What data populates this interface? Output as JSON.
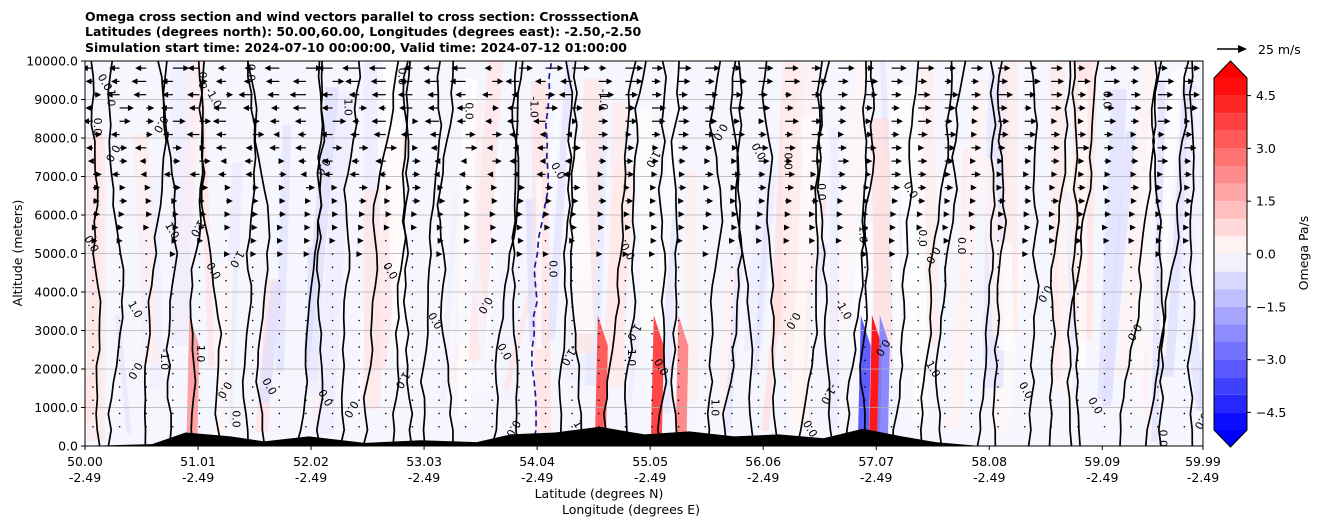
{
  "chart_data": {
    "type": "contour",
    "title_lines": [
      "Omega cross section and wind vectors parallel to cross section: CrosssectionA",
      "Latitudes (degrees north): 50.00,60.00, Longitudes (degrees east): -2.50,-2.50",
      "Simulation start time: 2024-07-10 00:00:00, Valid time: 2024-07-12 01:00:00"
    ],
    "xlabel_lines": [
      "Latitude (degrees N)",
      "Longitude (degrees E)"
    ],
    "ylabel": "Altitude (meters)",
    "xlim": [
      50.0,
      59.99
    ],
    "ylim": [
      0,
      10000
    ],
    "x_ticks": [
      {
        "lat": "50.00",
        "lon": "-2.49",
        "value": 50.0
      },
      {
        "lat": "51.01",
        "lon": "-2.49",
        "value": 51.01
      },
      {
        "lat": "52.02",
        "lon": "-2.49",
        "value": 52.02
      },
      {
        "lat": "53.03",
        "lon": "-2.49",
        "value": 53.03
      },
      {
        "lat": "54.04",
        "lon": "-2.49",
        "value": 54.04
      },
      {
        "lat": "55.05",
        "lon": "-2.49",
        "value": 55.05
      },
      {
        "lat": "56.06",
        "lon": "-2.49",
        "value": 56.06
      },
      {
        "lat": "57.07",
        "lon": "-2.49",
        "value": 57.07
      },
      {
        "lat": "58.08",
        "lon": "-2.49",
        "value": 58.08
      },
      {
        "lat": "59.09",
        "lon": "-2.49",
        "value": 59.09
      },
      {
        "lat": "59.99",
        "lon": "-2.49",
        "value": 59.99
      }
    ],
    "y_ticks": [
      "0.0",
      "1000.0",
      "2000.0",
      "3000.0",
      "4000.0",
      "5000.0",
      "6000.0",
      "7000.0",
      "8000.0",
      "9000.0",
      "10000.0"
    ],
    "y_tick_values": [
      0,
      1000,
      2000,
      3000,
      4000,
      5000,
      6000,
      7000,
      8000,
      9000,
      10000
    ],
    "colorbar": {
      "label": "Omega Pa/s",
      "range": [
        -5.0,
        5.0
      ],
      "ticks": [
        "4.5",
        "3.0",
        "1.5",
        "0.0",
        "−1.5",
        "−3.0",
        "−4.5"
      ],
      "tick_values": [
        4.5,
        3.0,
        1.5,
        0.0,
        -1.5,
        -3.0,
        -4.5
      ],
      "extend": "both",
      "cmap": "bwr"
    },
    "quiver_key": {
      "label": "25 m/s",
      "speed": 25
    },
    "contour_levels": [
      -1.0,
      0.0,
      1.0
    ],
    "contour_labels": [
      {
        "text": "0.0",
        "x": 50.03,
        "y": 5200
      },
      {
        "text": "0.0",
        "x": 50.08,
        "y": 8300
      },
      {
        "text": "0.0",
        "x": 50.22,
        "y": 7650
      },
      {
        "text": "0.0",
        "x": 50.15,
        "y": 9400
      },
      {
        "text": "-1.0",
        "x": 50.2,
        "y": 9100
      },
      {
        "text": "0.0",
        "x": 50.42,
        "y": 2000
      },
      {
        "text": "1.0",
        "x": 50.42,
        "y": 3500
      },
      {
        "text": "-1.0",
        "x": 50.68,
        "y": 2250
      },
      {
        "text": "0.0",
        "x": 50.65,
        "y": 8400
      },
      {
        "text": "1.0",
        "x": 50.75,
        "y": 5550
      },
      {
        "text": "0.0",
        "x": 51.02,
        "y": 9500
      },
      {
        "text": "1.0",
        "x": 50.98,
        "y": 5700
      },
      {
        "text": "-1.0",
        "x": 51.12,
        "y": 9000
      },
      {
        "text": "1.0",
        "x": 51.0,
        "y": 2400
      },
      {
        "text": "0.0",
        "x": 51.22,
        "y": 1500
      },
      {
        "text": "0.0",
        "x": 51.12,
        "y": 4500
      },
      {
        "text": "0.0",
        "x": 51.45,
        "y": 9700
      },
      {
        "text": "1.0",
        "x": 51.33,
        "y": 4900
      },
      {
        "text": "0.0",
        "x": 51.62,
        "y": 1500
      },
      {
        "text": "0.0",
        "x": 51.32,
        "y": 700
      },
      {
        "text": "0.0",
        "x": 52.1,
        "y": 7300
      },
      {
        "text": "0.0",
        "x": 52.12,
        "y": 1200
      },
      {
        "text": "1.0",
        "x": 52.32,
        "y": 8800
      },
      {
        "text": "0.0",
        "x": 52.35,
        "y": 1000
      },
      {
        "text": "0.0",
        "x": 52.7,
        "y": 4500
      },
      {
        "text": "0.0",
        "x": 52.8,
        "y": 9600
      },
      {
        "text": "-1.0",
        "x": 52.82,
        "y": 1800
      },
      {
        "text": "0.0",
        "x": 53.1,
        "y": 3200
      },
      {
        "text": "0.0",
        "x": 53.4,
        "y": 8700
      },
      {
        "text": "0.0",
        "x": 53.55,
        "y": 3700
      },
      {
        "text": "0.0",
        "x": 53.72,
        "y": 2400
      },
      {
        "text": "-1.0",
        "x": 53.98,
        "y": 8800
      },
      {
        "text": "0.0",
        "x": 53.8,
        "y": 500
      },
      {
        "text": "0.0",
        "x": 54.2,
        "y": 7100
      },
      {
        "text": "0.0",
        "x": 54.15,
        "y": 4600
      },
      {
        "text": "-1.0",
        "x": 54.3,
        "y": 2400
      },
      {
        "text": "1.0",
        "x": 54.4,
        "y": 400
      },
      {
        "text": "-1.0",
        "x": 54.6,
        "y": 9000
      },
      {
        "text": "1.0",
        "x": 54.88,
        "y": 3000
      },
      {
        "text": "0.0",
        "x": 54.82,
        "y": 5000
      },
      {
        "text": "1.0",
        "x": 54.85,
        "y": 2300
      },
      {
        "text": "1.0",
        "x": 55.05,
        "y": 7500
      },
      {
        "text": "0.0",
        "x": 55.12,
        "y": 2000
      },
      {
        "text": "1.0",
        "x": 55.6,
        "y": 1000
      },
      {
        "text": "0.0",
        "x": 55.65,
        "y": 8200
      },
      {
        "text": "0.0",
        "x": 55.99,
        "y": 7600
      },
      {
        "text": "0.0",
        "x": 56.25,
        "y": 7400
      },
      {
        "text": "0.0",
        "x": 56.3,
        "y": 3300
      },
      {
        "text": "0.0",
        "x": 56.45,
        "y": 400
      },
      {
        "text": "0.0",
        "x": 56.55,
        "y": 6600
      },
      {
        "text": "-1.0",
        "x": 56.62,
        "y": 1400
      },
      {
        "text": "-1.0",
        "x": 56.75,
        "y": 3500
      },
      {
        "text": "1.0",
        "x": 56.92,
        "y": 5500
      },
      {
        "text": "0.0",
        "x": 57.1,
        "y": 2600
      },
      {
        "text": "0.0",
        "x": 57.35,
        "y": 6600
      },
      {
        "text": "0.0",
        "x": 57.45,
        "y": 5400
      },
      {
        "text": "0.0",
        "x": 57.55,
        "y": 5000
      },
      {
        "text": "1.0",
        "x": 57.55,
        "y": 1950
      },
      {
        "text": "0.0",
        "x": 57.8,
        "y": 5200
      },
      {
        "text": "0.0",
        "x": 58.55,
        "y": 4000
      },
      {
        "text": "0.0",
        "x": 58.38,
        "y": 1400
      },
      {
        "text": "0.0",
        "x": 59.1,
        "y": 9000
      },
      {
        "text": "0.0",
        "x": 59.35,
        "y": 3000
      },
      {
        "text": "0.0",
        "x": 59.0,
        "y": 1000
      },
      {
        "text": "0.0",
        "x": 59.6,
        "y": 200
      },
      {
        "text": "0.0",
        "x": 59.95,
        "y": 700
      }
    ]
  }
}
